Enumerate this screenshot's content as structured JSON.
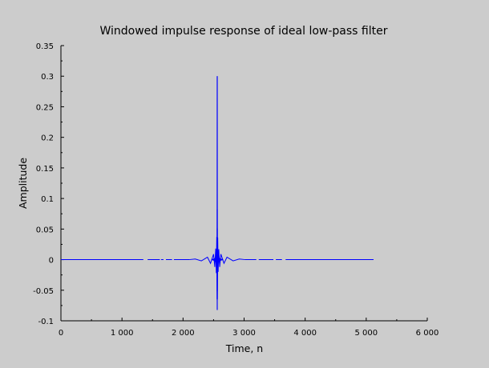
{
  "chart_data": {
    "type": "line",
    "title": "Windowed impulse response of ideal low-pass filter",
    "xlabel": "Time, n",
    "ylabel": "Amplitude",
    "xlim": [
      0,
      6000
    ],
    "ylim": [
      -0.1,
      0.35
    ],
    "x_ticks": [
      0,
      1000,
      2000,
      3000,
      4000,
      5000,
      6000
    ],
    "x_tick_labels": [
      "0",
      "1 000",
      "2 000",
      "3 000",
      "4 000",
      "5 000",
      "6 000"
    ],
    "y_ticks": [
      -0.1,
      -0.05,
      0,
      0.05,
      0.1,
      0.15,
      0.2,
      0.25,
      0.3,
      0.35
    ],
    "y_tick_labels": [
      "-0.1",
      "-0.05",
      "0",
      "0.05",
      "0.1",
      "0.15",
      "0.2",
      "0.25",
      "0.3",
      "0.35"
    ],
    "grid": false,
    "series": [
      {
        "color": "#0000ff",
        "signal": {
          "n_start": 0,
          "n_end": 5120,
          "center": 2560,
          "peak": 0.3,
          "min": -0.065
        },
        "points": [
          [
            0,
            0
          ],
          [
            2100,
            0
          ],
          [
            2200,
            0.001
          ],
          [
            2300,
            -0.002
          ],
          [
            2400,
            0.004
          ],
          [
            2450,
            -0.006
          ],
          [
            2500,
            0.009
          ],
          [
            2520,
            -0.012
          ],
          [
            2535,
            0.018
          ],
          [
            2545,
            -0.022
          ],
          [
            2552,
            0.037
          ],
          [
            2556,
            -0.036
          ],
          [
            2558,
            -0.065
          ],
          [
            2560,
            0.3
          ],
          [
            2562,
            -0.065
          ],
          [
            2564,
            -0.035
          ],
          [
            2568,
            0.036
          ],
          [
            2575,
            -0.02
          ],
          [
            2585,
            0.017
          ],
          [
            2600,
            -0.012
          ],
          [
            2620,
            0.009
          ],
          [
            2670,
            -0.006
          ],
          [
            2720,
            0.004
          ],
          [
            2820,
            -0.002
          ],
          [
            2920,
            0.001
          ],
          [
            3020,
            0
          ],
          [
            5120,
            0
          ]
        ]
      }
    ]
  }
}
